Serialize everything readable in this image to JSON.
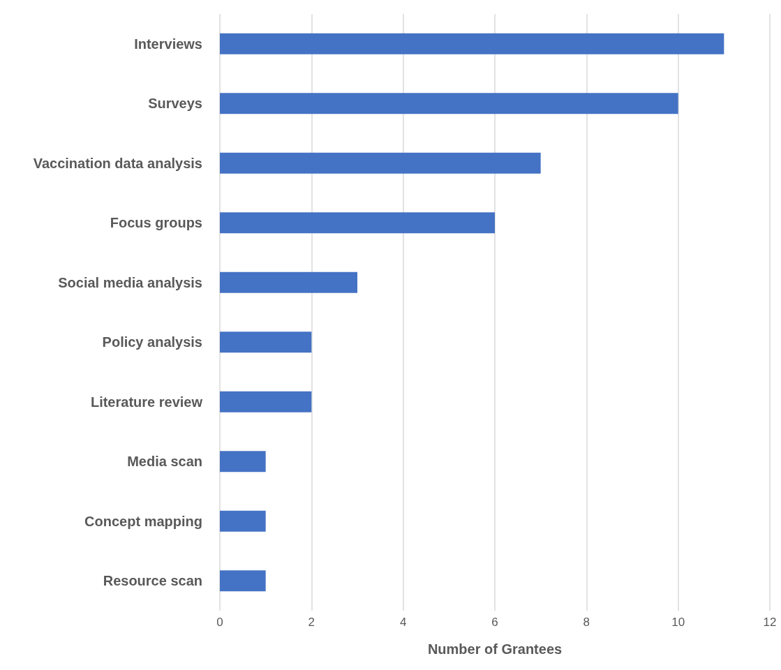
{
  "chart_data": {
    "type": "bar",
    "orientation": "horizontal",
    "xlabel": "Number of Grantees",
    "categories": [
      "Interviews",
      "Surveys",
      "Vaccination data analysis",
      "Focus groups",
      "Social media analysis",
      "Policy analysis",
      "Literature review",
      "Media scan",
      "Concept mapping",
      "Resource scan"
    ],
    "values": [
      11,
      10,
      7,
      6,
      3,
      2,
      2,
      1,
      1,
      1
    ],
    "color": "#4472c4",
    "xlim": [
      0,
      12
    ],
    "xticks": [
      0,
      2,
      4,
      6,
      8,
      10,
      12
    ],
    "grid": "x"
  }
}
